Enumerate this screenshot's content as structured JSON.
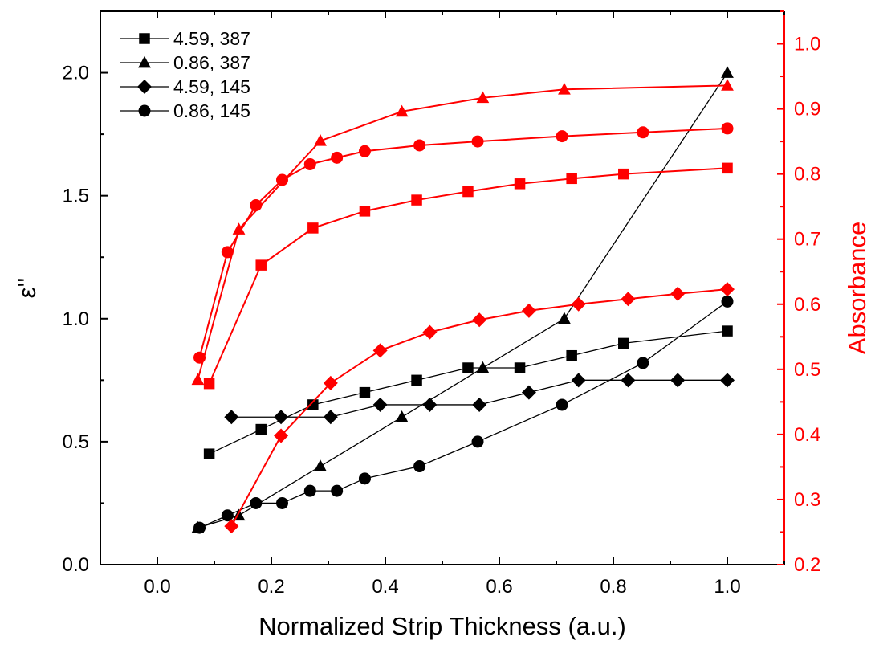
{
  "chart_data": {
    "type": "line",
    "title": "",
    "xlabel": "Normalized Strip Thickness (a.u.)",
    "ylabel_left": "ε''",
    "ylabel_right": "Absorbance",
    "xlim": [
      -0.1,
      1.1
    ],
    "ylim_left": [
      0,
      2.25
    ],
    "ylim_right": [
      0.2,
      1.05
    ],
    "x_ticks": [
      "0.0",
      "0.2",
      "0.4",
      "0.6",
      "0.8",
      "1.0"
    ],
    "y_left_ticks": [
      "0.0",
      "0.5",
      "1.0",
      "1.5",
      "2.0"
    ],
    "y_right_ticks": [
      "0.2",
      "0.3",
      "0.4",
      "0.5",
      "0.6",
      "0.7",
      "0.8",
      "0.9",
      "1.0"
    ],
    "grid": false,
    "legend_position": "top-left",
    "colors": {
      "left_axis": "#000000",
      "right_axis": "#ff0000"
    },
    "series": [
      {
        "name": "4.59, 387",
        "axis": "left",
        "marker": "square",
        "x": [
          0.091,
          0.182,
          0.273,
          0.364,
          0.455,
          0.545,
          0.636,
          0.727,
          0.818,
          1.0
        ],
        "y": [
          0.45,
          0.55,
          0.65,
          0.7,
          0.75,
          0.8,
          0.8,
          0.85,
          0.9,
          0.95
        ]
      },
      {
        "name": "0.86, 387",
        "axis": "left",
        "marker": "triangle",
        "x": [
          0.071,
          0.143,
          0.286,
          0.429,
          0.571,
          0.714,
          1.0
        ],
        "y": [
          0.15,
          0.2,
          0.4,
          0.6,
          0.8,
          1.0,
          2.0
        ]
      },
      {
        "name": "4.59, 145",
        "axis": "left",
        "marker": "diamond",
        "x": [
          0.13,
          0.217,
          0.304,
          0.391,
          0.478,
          0.565,
          0.652,
          0.739,
          0.826,
          0.913,
          1.0
        ],
        "y": [
          0.6,
          0.6,
          0.6,
          0.65,
          0.65,
          0.65,
          0.7,
          0.75,
          0.75,
          0.75,
          0.75
        ]
      },
      {
        "name": "0.86, 145",
        "axis": "left",
        "marker": "circle",
        "x": [
          0.074,
          0.123,
          0.173,
          0.219,
          0.268,
          0.315,
          0.364,
          0.46,
          0.562,
          0.71,
          0.852,
          1.0
        ],
        "y": [
          0.15,
          0.2,
          0.25,
          0.25,
          0.3,
          0.3,
          0.35,
          0.4,
          0.5,
          0.65,
          0.82,
          1.07
        ]
      },
      {
        "axis": "right",
        "marker": "square",
        "x": [
          0.091,
          0.182,
          0.273,
          0.364,
          0.455,
          0.545,
          0.636,
          0.727,
          0.818,
          1.0
        ],
        "y": [
          0.478,
          0.66,
          0.717,
          0.743,
          0.76,
          0.773,
          0.785,
          0.793,
          0.8,
          0.809
        ]
      },
      {
        "axis": "right",
        "marker": "triangle",
        "x": [
          0.071,
          0.143,
          0.286,
          0.429,
          0.571,
          0.714,
          1.0
        ],
        "y": [
          0.484,
          0.715,
          0.851,
          0.896,
          0.917,
          0.93,
          0.936
        ]
      },
      {
        "axis": "right",
        "marker": "diamond",
        "x": [
          0.13,
          0.217,
          0.304,
          0.391,
          0.478,
          0.565,
          0.652,
          0.739,
          0.826,
          0.913,
          1.0
        ],
        "y": [
          0.259,
          0.398,
          0.479,
          0.529,
          0.557,
          0.576,
          0.59,
          0.6,
          0.608,
          0.616,
          0.623
        ]
      },
      {
        "axis": "right",
        "marker": "circle",
        "x": [
          0.074,
          0.123,
          0.173,
          0.219,
          0.268,
          0.315,
          0.364,
          0.46,
          0.562,
          0.71,
          0.852,
          1.0
        ],
        "y": [
          0.518,
          0.68,
          0.752,
          0.791,
          0.815,
          0.825,
          0.835,
          0.844,
          0.85,
          0.858,
          0.864,
          0.87
        ]
      }
    ]
  }
}
